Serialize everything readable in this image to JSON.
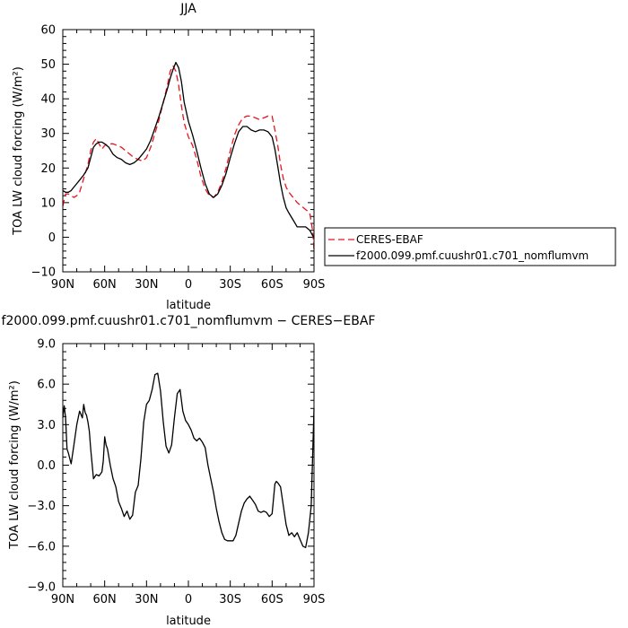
{
  "chart_data": [
    {
      "type": "line",
      "title": "JJA",
      "xlabel": "latitude",
      "ylabel": "TOA LW cloud forcing (W/m²)",
      "xlim": [
        90,
        -90
      ],
      "ylim": [
        -10,
        60
      ],
      "x_ticks": [
        90,
        60,
        30,
        0,
        -30,
        -60,
        -90
      ],
      "x_tick_labels": [
        "90N",
        "60N",
        "30N",
        "0",
        "30S",
        "60S",
        "90S"
      ],
      "y_ticks": [
        -10,
        0,
        10,
        20,
        30,
        40,
        50,
        60
      ],
      "y_tick_labels": [
        "−10",
        "0",
        "10",
        "20",
        "30",
        "40",
        "50",
        "60"
      ],
      "legend_position": "right",
      "series": [
        {
          "name": "CERES-EBAF",
          "color": "#e8141e",
          "style": "dashed",
          "x": [
            90,
            88,
            86,
            84,
            82,
            80,
            78,
            75,
            72,
            70,
            68,
            66,
            64,
            62,
            60,
            57,
            54,
            51,
            48,
            45,
            42,
            39,
            36,
            33,
            30,
            27,
            24,
            21,
            18,
            15,
            13,
            11,
            9,
            7,
            5,
            3,
            0,
            -3,
            -6,
            -9,
            -12,
            -15,
            -18,
            -21,
            -24,
            -27,
            -30,
            -33,
            -36,
            -39,
            -42,
            -45,
            -48,
            -51,
            -54,
            -57,
            -60,
            -62,
            -64,
            -66,
            -68,
            -70,
            -72,
            -75,
            -78,
            -81,
            -84,
            -87,
            -89,
            -90
          ],
          "y": [
            9,
            12.5,
            12.5,
            12,
            11.5,
            12,
            13,
            17,
            21,
            25,
            27.5,
            28.5,
            27,
            25.5,
            26.5,
            27,
            27,
            26.5,
            26,
            25,
            24,
            23,
            22.5,
            22,
            23,
            26,
            30,
            34,
            39,
            44,
            48,
            49.5,
            48,
            44,
            38,
            33,
            29,
            26.5,
            22.5,
            17.5,
            14,
            12,
            11.5,
            13,
            16,
            20,
            25,
            29.5,
            32.5,
            34.5,
            35,
            35,
            34.5,
            34,
            34.5,
            35,
            35,
            31,
            26.5,
            21,
            17,
            14.5,
            13,
            11.5,
            10,
            9,
            8,
            7,
            2,
            -3.5
          ]
        },
        {
          "name": "f2000.099.pmf.cuushr01.c701_nomflumvm",
          "color": "#000000",
          "style": "solid",
          "x": [
            90,
            88,
            86,
            84,
            82,
            80,
            78,
            75,
            72,
            70,
            68,
            66,
            64,
            62,
            60,
            57,
            54,
            51,
            48,
            45,
            42,
            39,
            36,
            33,
            30,
            27,
            24,
            21,
            18,
            15,
            13,
            11,
            9,
            7,
            5,
            3,
            0,
            -3,
            -6,
            -9,
            -12,
            -15,
            -18,
            -21,
            -24,
            -27,
            -30,
            -33,
            -36,
            -39,
            -42,
            -45,
            -48,
            -51,
            -54,
            -57,
            -60,
            -62,
            -64,
            -66,
            -68,
            -70,
            -72,
            -75,
            -78,
            -81,
            -84,
            -87,
            -89,
            -90
          ],
          "y": [
            13.5,
            13,
            13,
            13.5,
            14.5,
            15.5,
            16.5,
            18,
            20,
            23,
            26,
            27,
            27.5,
            27.5,
            27,
            26,
            24,
            23,
            22.5,
            21.5,
            21,
            21.5,
            22.5,
            24,
            25.5,
            28,
            31.5,
            35,
            39,
            43,
            46,
            48.5,
            50.5,
            49,
            45,
            39,
            33.5,
            29.5,
            25,
            20,
            15.5,
            12.5,
            11.5,
            12.5,
            15,
            18.5,
            23,
            27,
            30.5,
            32,
            32,
            31,
            30.5,
            31,
            31,
            30.5,
            29,
            25.5,
            20.5,
            15.5,
            11.5,
            8.5,
            7,
            5,
            3,
            3,
            3,
            2,
            0.5,
            0
          ]
        }
      ]
    },
    {
      "type": "line",
      "title": "f2000.099.pmf.cuushr01.c701_nomflumvm − CERES−EBAF",
      "xlabel": "latitude",
      "ylabel": "TOA LW cloud forcing (W/m²)",
      "xlim": [
        90,
        -90
      ],
      "ylim": [
        -9,
        9
      ],
      "x_ticks": [
        90,
        60,
        30,
        0,
        -30,
        -60,
        -90
      ],
      "x_tick_labels": [
        "90N",
        "60N",
        "30N",
        "0",
        "30S",
        "60S",
        "90S"
      ],
      "y_ticks": [
        -9,
        -6,
        -3,
        0,
        3,
        6,
        9
      ],
      "y_tick_labels": [
        "−9.0",
        "−6.0",
        "−3.0",
        "0.0",
        "3.0",
        "6.0",
        "9.0"
      ],
      "series": [
        {
          "name": "",
          "color": "#000000",
          "style": "solid",
          "x": [
            90,
            89,
            88,
            87,
            86,
            84,
            82,
            80,
            78,
            76,
            75,
            74,
            73,
            72,
            71,
            70,
            68,
            66,
            64,
            62,
            61,
            60,
            59,
            58,
            56,
            54,
            52,
            50,
            48,
            46,
            44,
            42,
            40,
            38,
            36,
            34,
            32,
            30,
            28,
            26,
            24,
            22,
            20,
            18,
            16,
            14,
            12,
            10,
            8,
            6,
            4,
            2,
            0,
            -2,
            -4,
            -6,
            -8,
            -10,
            -12,
            -14,
            -16,
            -18,
            -20,
            -22,
            -24,
            -26,
            -28,
            -30,
            -32,
            -34,
            -36,
            -38,
            -40,
            -42,
            -44,
            -46,
            -48,
            -50,
            -52,
            -54,
            -56,
            -58,
            -60,
            -62,
            -63,
            -64,
            -66,
            -68,
            -70,
            -72,
            -74,
            -76,
            -78,
            -80,
            -82,
            -84,
            -86,
            -88,
            -89,
            -90
          ],
          "y": [
            3.5,
            4.4,
            3.5,
            1.2,
            0.9,
            0.1,
            1.5,
            3.0,
            4.0,
            3.5,
            4.5,
            3.9,
            3.7,
            3.2,
            2.5,
            1.2,
            -1.0,
            -0.7,
            -0.8,
            -0.5,
            0.3,
            2.1,
            1.5,
            1.2,
            0.0,
            -1.0,
            -1.6,
            -2.7,
            -3.2,
            -3.8,
            -3.4,
            -4.0,
            -3.7,
            -2.0,
            -1.5,
            0.5,
            3.2,
            4.5,
            4.8,
            5.6,
            6.7,
            6.8,
            5.5,
            3.2,
            1.4,
            0.9,
            1.5,
            3.5,
            5.3,
            5.6,
            4.0,
            3.3,
            3.0,
            2.6,
            2.0,
            1.8,
            2.0,
            1.7,
            1.3,
            0.0,
            -1.0,
            -2.0,
            -3.2,
            -4.2,
            -5.0,
            -5.5,
            -5.6,
            -5.6,
            -5.6,
            -5.2,
            -4.3,
            -3.4,
            -2.8,
            -2.5,
            -2.3,
            -2.6,
            -2.9,
            -3.4,
            -3.5,
            -3.4,
            -3.5,
            -3.8,
            -3.6,
            -1.4,
            -1.2,
            -1.3,
            -1.6,
            -3.0,
            -4.4,
            -5.2,
            -5.0,
            -5.3,
            -5.0,
            -5.5,
            -6.0,
            -6.1,
            -5.0,
            -3.0,
            0.5,
            4.2
          ]
        }
      ]
    }
  ]
}
